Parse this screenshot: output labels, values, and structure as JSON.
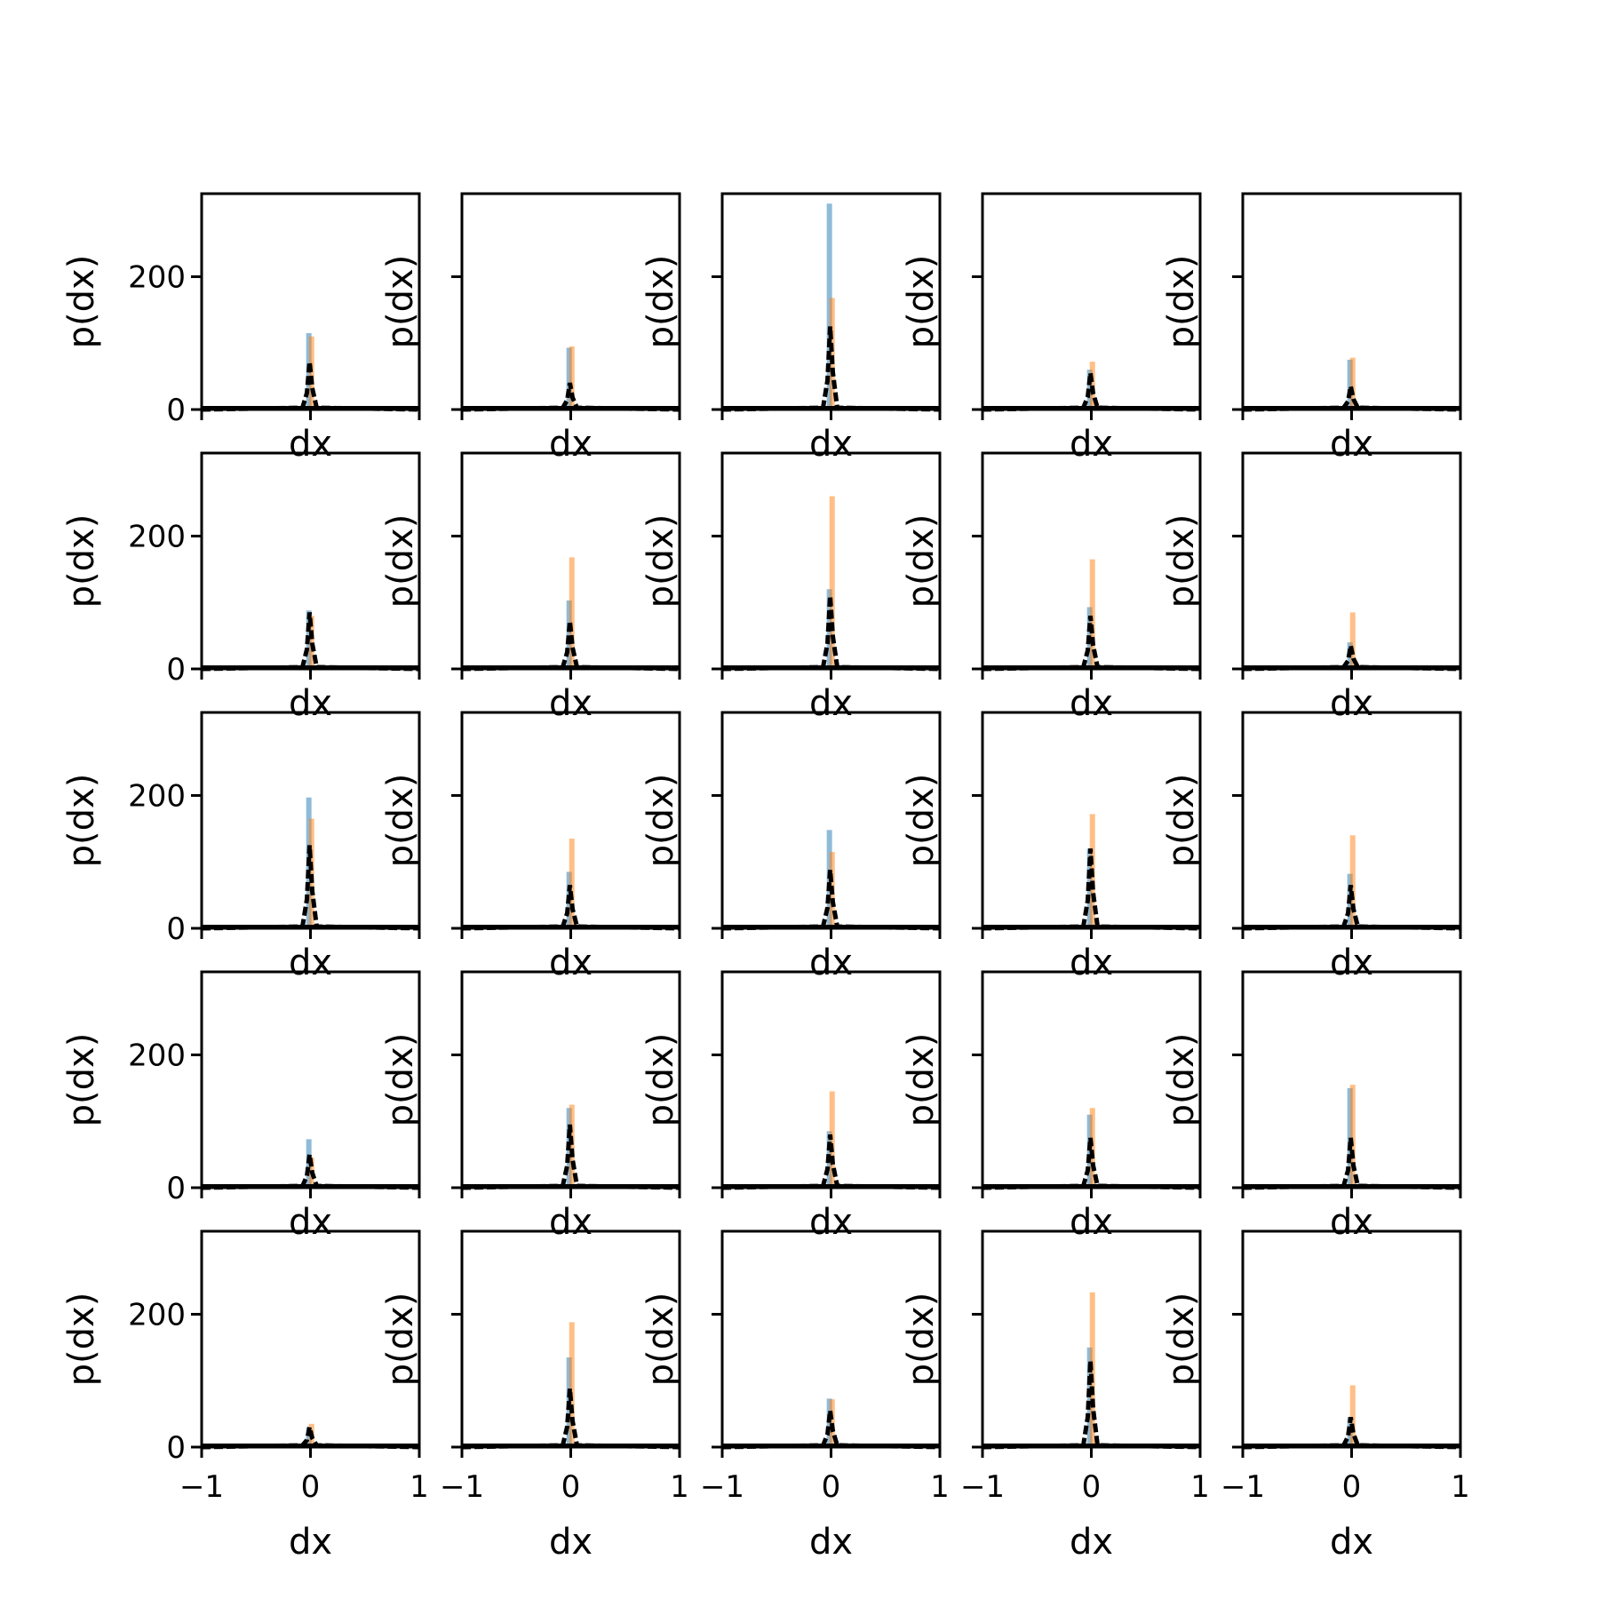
{
  "figure": {
    "rows": 5,
    "cols": 5,
    "colors": {
      "blue": "#1f77b4",
      "orange": "#ff7f0e",
      "black": "#000000",
      "background": "#ffffff"
    }
  },
  "chart_data": {
    "type": "histogram-grid",
    "shared_axes": {
      "xlabel": "dx",
      "ylabel": "p(dx)",
      "xlim": [
        -1,
        1
      ],
      "ylim": [
        0,
        325
      ],
      "xticks": [
        -1,
        0,
        1
      ],
      "xtick_labels": [
        "−1",
        "0",
        "1"
      ],
      "yticks": [
        0,
        200
      ],
      "ytick_labels": [
        "0",
        "200"
      ]
    },
    "panels": [
      {
        "row": 1,
        "col": 1,
        "blue": 115,
        "orange": 110,
        "black": 72
      },
      {
        "row": 1,
        "col": 2,
        "blue": 93,
        "orange": 95,
        "black": 40
      },
      {
        "row": 1,
        "col": 3,
        "blue": 310,
        "orange": 168,
        "black": 125
      },
      {
        "row": 1,
        "col": 4,
        "blue": 60,
        "orange": 72,
        "black": 55
      },
      {
        "row": 1,
        "col": 5,
        "blue": 75,
        "orange": 78,
        "black": 35
      },
      {
        "row": 2,
        "col": 1,
        "blue": 88,
        "orange": 80,
        "black": 85
      },
      {
        "row": 2,
        "col": 2,
        "blue": 103,
        "orange": 168,
        "black": 72
      },
      {
        "row": 2,
        "col": 3,
        "blue": 120,
        "orange": 260,
        "black": 110
      },
      {
        "row": 2,
        "col": 4,
        "blue": 93,
        "orange": 165,
        "black": 80
      },
      {
        "row": 2,
        "col": 5,
        "blue": 40,
        "orange": 85,
        "black": 35
      },
      {
        "row": 3,
        "col": 1,
        "blue": 197,
        "orange": 165,
        "black": 125
      },
      {
        "row": 3,
        "col": 2,
        "blue": 85,
        "orange": 135,
        "black": 65
      },
      {
        "row": 3,
        "col": 3,
        "blue": 148,
        "orange": 115,
        "black": 88
      },
      {
        "row": 3,
        "col": 4,
        "blue": 120,
        "orange": 172,
        "black": 120
      },
      {
        "row": 3,
        "col": 5,
        "blue": 82,
        "orange": 140,
        "black": 65
      },
      {
        "row": 4,
        "col": 1,
        "blue": 73,
        "orange": 45,
        "black": 50
      },
      {
        "row": 4,
        "col": 2,
        "blue": 120,
        "orange": 125,
        "black": 95
      },
      {
        "row": 4,
        "col": 3,
        "blue": 85,
        "orange": 145,
        "black": 80
      },
      {
        "row": 4,
        "col": 4,
        "blue": 110,
        "orange": 120,
        "black": 75
      },
      {
        "row": 4,
        "col": 5,
        "blue": 150,
        "orange": 155,
        "black": 75
      },
      {
        "row": 5,
        "col": 1,
        "blue": 30,
        "orange": 35,
        "black": 30
      },
      {
        "row": 5,
        "col": 2,
        "blue": 135,
        "orange": 188,
        "black": 88
      },
      {
        "row": 5,
        "col": 3,
        "blue": 73,
        "orange": 72,
        "black": 55
      },
      {
        "row": 5,
        "col": 4,
        "blue": 150,
        "orange": 233,
        "black": 130
      },
      {
        "row": 5,
        "col": 5,
        "blue": 45,
        "orange": 93,
        "black": 45
      }
    ]
  }
}
